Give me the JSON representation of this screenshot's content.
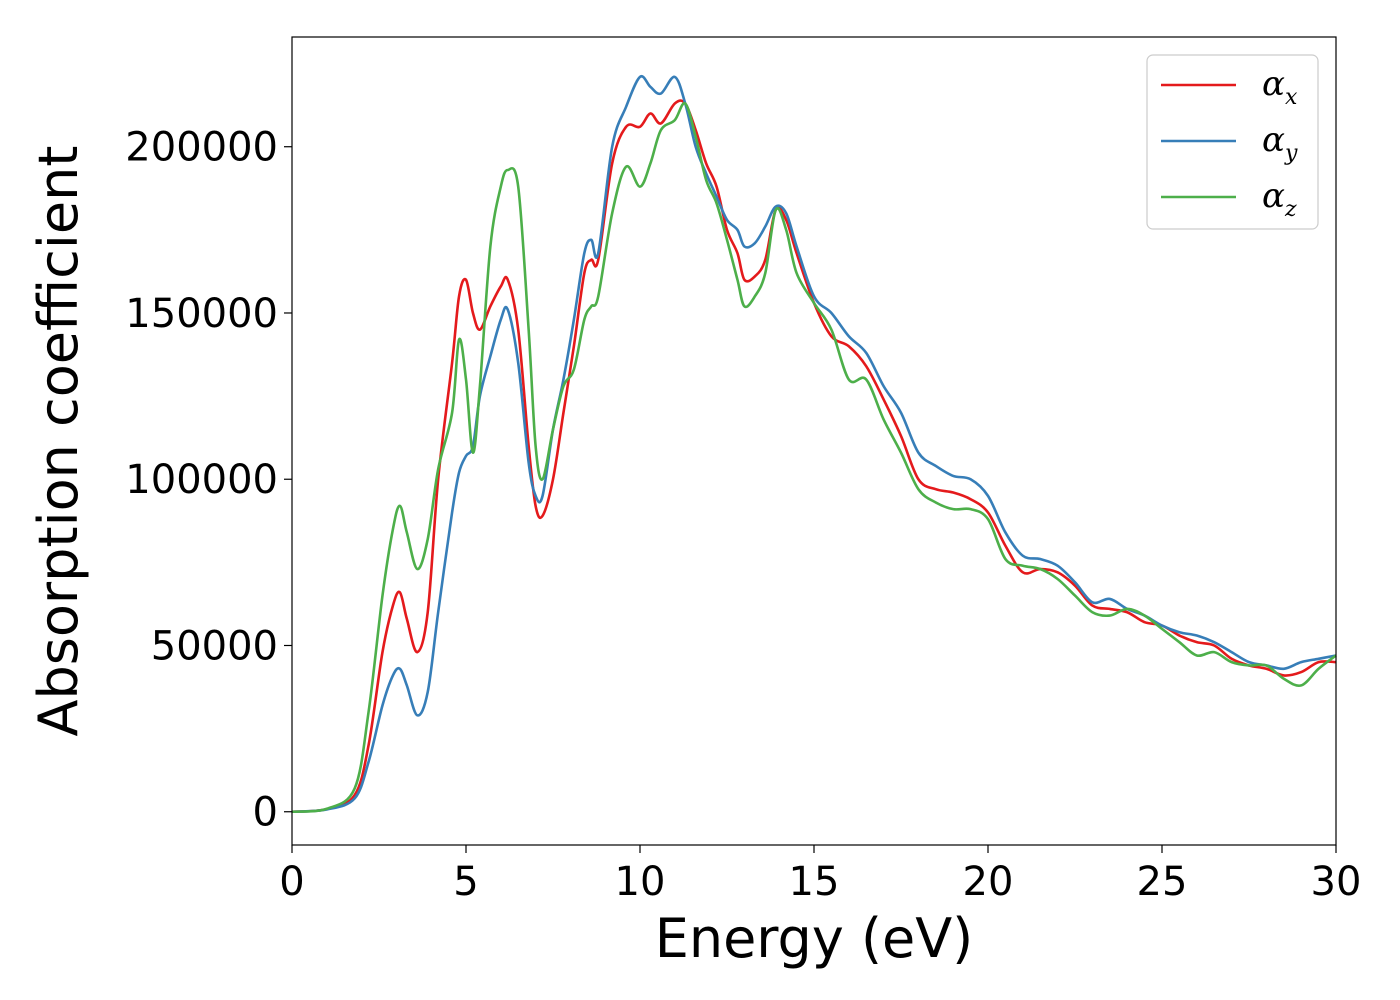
{
  "chart_data": {
    "type": "line",
    "title": "",
    "xlabel": "Energy (eV)",
    "ylabel": "Absorption coefficient",
    "xlim": [
      0,
      30
    ],
    "ylim": [
      -10000,
      233000
    ],
    "xticks": [
      0,
      5,
      10,
      15,
      20,
      25,
      30
    ],
    "yticks": [
      0,
      50000,
      100000,
      150000,
      200000
    ],
    "grid": false,
    "legend_position": "top-right",
    "series": [
      {
        "name": "α_x",
        "label_main": "α",
        "label_sub": "x",
        "color": "#e41a1c",
        "x": [
          0,
          1,
          1.8,
          2.2,
          2.6,
          2.9,
          3.1,
          3.3,
          3.6,
          3.9,
          4.2,
          4.6,
          4.8,
          5.0,
          5.2,
          5.4,
          5.7,
          6.0,
          6.2,
          6.5,
          6.8,
          7.0,
          7.2,
          7.5,
          7.8,
          8.1,
          8.4,
          8.6,
          8.8,
          9.2,
          9.6,
          10.0,
          10.3,
          10.6,
          11.0,
          11.3,
          11.6,
          11.9,
          12.2,
          12.5,
          12.8,
          13.0,
          13.3,
          13.6,
          13.9,
          14.2,
          14.5,
          15.0,
          15.5,
          16.0,
          16.5,
          17.0,
          17.5,
          18.0,
          18.5,
          19.0,
          19.5,
          20.0,
          20.5,
          21.0,
          21.5,
          22.0,
          22.5,
          23.0,
          23.5,
          24.0,
          24.5,
          25.0,
          25.5,
          26.0,
          26.5,
          27.0,
          27.5,
          28.0,
          28.5,
          29.0,
          29.5,
          30.0
        ],
        "y": [
          0,
          800,
          5000,
          20000,
          48000,
          62000,
          66000,
          58000,
          48000,
          60000,
          100000,
          135000,
          155000,
          160000,
          150000,
          145000,
          152000,
          158000,
          160000,
          145000,
          110000,
          92000,
          89000,
          100000,
          120000,
          140000,
          162000,
          166000,
          166000,
          195000,
          206000,
          206000,
          210000,
          207000,
          213000,
          213000,
          205000,
          195000,
          188000,
          175000,
          168000,
          160000,
          161000,
          166000,
          181000,
          178000,
          168000,
          153000,
          143000,
          140000,
          134000,
          124000,
          113000,
          100000,
          97000,
          96000,
          94000,
          90000,
          80000,
          72000,
          73000,
          72000,
          68000,
          62000,
          61000,
          60000,
          57000,
          56000,
          53000,
          51000,
          50000,
          46000,
          44000,
          43000,
          41000,
          42000,
          45000,
          45000
        ]
      },
      {
        "name": "α_y",
        "label_main": "α",
        "label_sub": "y",
        "color": "#377eb8",
        "x": [
          0,
          1,
          1.8,
          2.2,
          2.6,
          2.9,
          3.1,
          3.3,
          3.6,
          3.9,
          4.2,
          4.6,
          4.8,
          5.0,
          5.2,
          5.4,
          5.7,
          6.0,
          6.2,
          6.5,
          6.8,
          7.0,
          7.2,
          7.5,
          7.8,
          8.1,
          8.4,
          8.6,
          8.8,
          9.2,
          9.6,
          10.0,
          10.3,
          10.6,
          11.0,
          11.3,
          11.6,
          11.9,
          12.2,
          12.5,
          12.8,
          13.0,
          13.3,
          13.6,
          13.9,
          14.2,
          14.5,
          15.0,
          15.5,
          16.0,
          16.5,
          17.0,
          17.5,
          18.0,
          18.5,
          19.0,
          19.5,
          20.0,
          20.5,
          21.0,
          21.5,
          22.0,
          22.5,
          23.0,
          23.5,
          24.0,
          24.5,
          25.0,
          25.5,
          26.0,
          26.5,
          27.0,
          27.5,
          28.0,
          28.5,
          29.0,
          29.5,
          30.0
        ],
        "y": [
          0,
          700,
          4000,
          15000,
          32000,
          41000,
          43000,
          38000,
          29000,
          36000,
          60000,
          90000,
          102000,
          107000,
          110000,
          125000,
          137000,
          148000,
          151000,
          135000,
          105000,
          95000,
          95000,
          115000,
          130000,
          148000,
          168000,
          172000,
          168000,
          200000,
          212000,
          221000,
          218000,
          216000,
          221000,
          213000,
          200000,
          192000,
          185000,
          178000,
          175000,
          170000,
          171000,
          176000,
          182000,
          180000,
          170000,
          155000,
          150000,
          143000,
          138000,
          128000,
          120000,
          108000,
          104000,
          101000,
          100000,
          95000,
          84000,
          77000,
          76000,
          74000,
          69000,
          63000,
          64000,
          61000,
          59000,
          56000,
          54000,
          53000,
          51000,
          48000,
          45000,
          44000,
          43000,
          45000,
          46000,
          47000
        ]
      },
      {
        "name": "α_z",
        "label_main": "α",
        "label_sub": "z",
        "color": "#4daf4a",
        "x": [
          0,
          1,
          1.8,
          2.2,
          2.6,
          2.9,
          3.1,
          3.3,
          3.6,
          3.9,
          4.2,
          4.6,
          4.8,
          5.0,
          5.2,
          5.4,
          5.7,
          6.0,
          6.2,
          6.5,
          6.8,
          7.0,
          7.2,
          7.5,
          7.8,
          8.1,
          8.4,
          8.6,
          8.8,
          9.2,
          9.6,
          10.0,
          10.3,
          10.6,
          11.0,
          11.3,
          11.6,
          11.9,
          12.2,
          12.5,
          12.8,
          13.0,
          13.3,
          13.6,
          13.9,
          14.2,
          14.5,
          15.0,
          15.5,
          16.0,
          16.5,
          17.0,
          17.5,
          18.0,
          18.5,
          19.0,
          19.5,
          20.0,
          20.5,
          21.0,
          21.5,
          22.0,
          22.5,
          23.0,
          23.5,
          24.0,
          24.5,
          25.0,
          25.5,
          26.0,
          26.5,
          27.0,
          27.5,
          28.0,
          28.5,
          29.0,
          29.5,
          30.0
        ],
        "y": [
          0,
          900,
          7000,
          30000,
          65000,
          85000,
          92000,
          84000,
          73000,
          82000,
          103000,
          120000,
          142000,
          130000,
          108000,
          128000,
          170000,
          188000,
          193000,
          188000,
          145000,
          110000,
          100000,
          115000,
          128000,
          133000,
          148000,
          152000,
          155000,
          180000,
          194000,
          188000,
          195000,
          205000,
          208000,
          213000,
          203000,
          190000,
          183000,
          172000,
          160000,
          152000,
          155000,
          162000,
          181000,
          175000,
          162000,
          153000,
          145000,
          130000,
          130000,
          118000,
          108000,
          97000,
          93000,
          91000,
          91000,
          88000,
          76000,
          74000,
          73000,
          70000,
          65000,
          60000,
          59000,
          61000,
          59000,
          55000,
          51000,
          47000,
          48000,
          45000,
          44000,
          44000,
          40000,
          38000,
          43000,
          47000
        ]
      }
    ]
  }
}
